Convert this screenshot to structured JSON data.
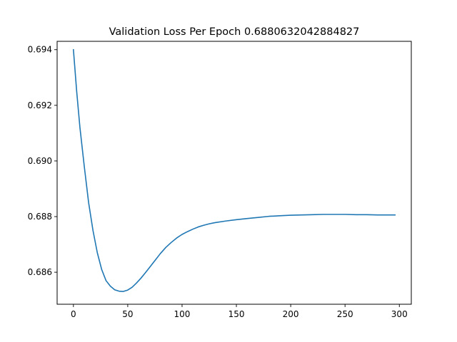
{
  "chart_data": {
    "type": "line",
    "title": "Validation Loss Per Epoch 0.6880632042884827",
    "xlabel": "",
    "ylabel": "",
    "xlim": [
      -15,
      311
    ],
    "ylim": [
      0.68485,
      0.6943
    ],
    "x_ticks": [
      0,
      50,
      100,
      150,
      200,
      250,
      300
    ],
    "x_tick_labels": [
      "0",
      "50",
      "100",
      "150",
      "200",
      "250",
      "300"
    ],
    "y_ticks": [
      0.686,
      0.688,
      0.69,
      0.692,
      0.694
    ],
    "y_tick_labels": [
      "0.686",
      "0.688",
      "0.690",
      "0.692",
      "0.694"
    ],
    "grid": false,
    "series": [
      {
        "color": "#1f77b4",
        "x": [
          0,
          3,
          6,
          10,
          14,
          18,
          22,
          26,
          30,
          34,
          38,
          42,
          46,
          50,
          54,
          58,
          62,
          66,
          70,
          75,
          80,
          85,
          90,
          95,
          100,
          105,
          110,
          115,
          120,
          125,
          130,
          140,
          150,
          160,
          170,
          180,
          190,
          200,
          210,
          220,
          230,
          240,
          250,
          260,
          270,
          280,
          290,
          296
        ],
        "y": [
          0.694,
          0.6925,
          0.6912,
          0.6898,
          0.6885,
          0.6875,
          0.6867,
          0.6861,
          0.6857,
          0.6855,
          0.68537,
          0.68532,
          0.68531,
          0.68536,
          0.68546,
          0.68561,
          0.68578,
          0.68597,
          0.68617,
          0.68642,
          0.68667,
          0.68689,
          0.68707,
          0.68723,
          0.68736,
          0.68746,
          0.68755,
          0.68763,
          0.68769,
          0.68774,
          0.68778,
          0.68784,
          0.68789,
          0.68793,
          0.68797,
          0.68801,
          0.68803,
          0.68805,
          0.68806,
          0.68807,
          0.68808,
          0.68808,
          0.68808,
          0.68807,
          0.68807,
          0.68806,
          0.68806,
          0.68806
        ]
      }
    ]
  }
}
